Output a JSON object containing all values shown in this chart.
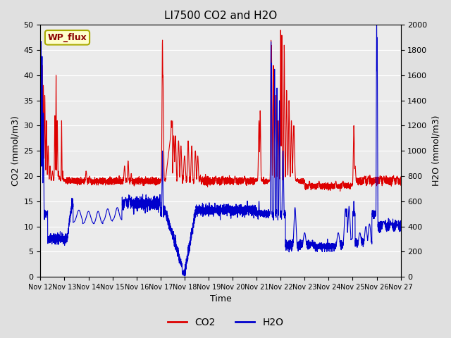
{
  "title": "LI7500 CO2 and H2O",
  "xlabel": "Time",
  "ylabel_left": "CO2 (mmol/m3)",
  "ylabel_right": "H2O (mmol/m3)",
  "annotation_text": "WP_flux",
  "x_start": 12.0,
  "x_end": 27.0,
  "xtick_labels": [
    "Nov 12",
    "Nov 13",
    "Nov 14",
    "Nov 15",
    "Nov 16",
    "Nov 17",
    "Nov 18",
    "Nov 19",
    "Nov 20",
    "Nov 21",
    "Nov 22",
    "Nov 23",
    "Nov 24",
    "Nov 25",
    "Nov 26",
    "Nov 27"
  ],
  "xtick_positions": [
    12,
    13,
    14,
    15,
    16,
    17,
    18,
    19,
    20,
    21,
    22,
    23,
    24,
    25,
    26,
    27
  ],
  "ylim_left": [
    0,
    50
  ],
  "ylim_right": [
    0,
    2000
  ],
  "yticks_left": [
    0,
    5,
    10,
    15,
    20,
    25,
    30,
    35,
    40,
    45,
    50
  ],
  "yticks_right": [
    0,
    200,
    400,
    600,
    800,
    1000,
    1200,
    1400,
    1600,
    1800,
    2000
  ],
  "co2_color": "#dd0000",
  "h2o_color": "#0000cc",
  "line_width": 0.8,
  "bg_color": "#e0e0e0",
  "plot_bg_color": "#ebebeb",
  "grid_color": "#ffffff",
  "legend_co2": "CO2",
  "legend_h2o": "H2O"
}
